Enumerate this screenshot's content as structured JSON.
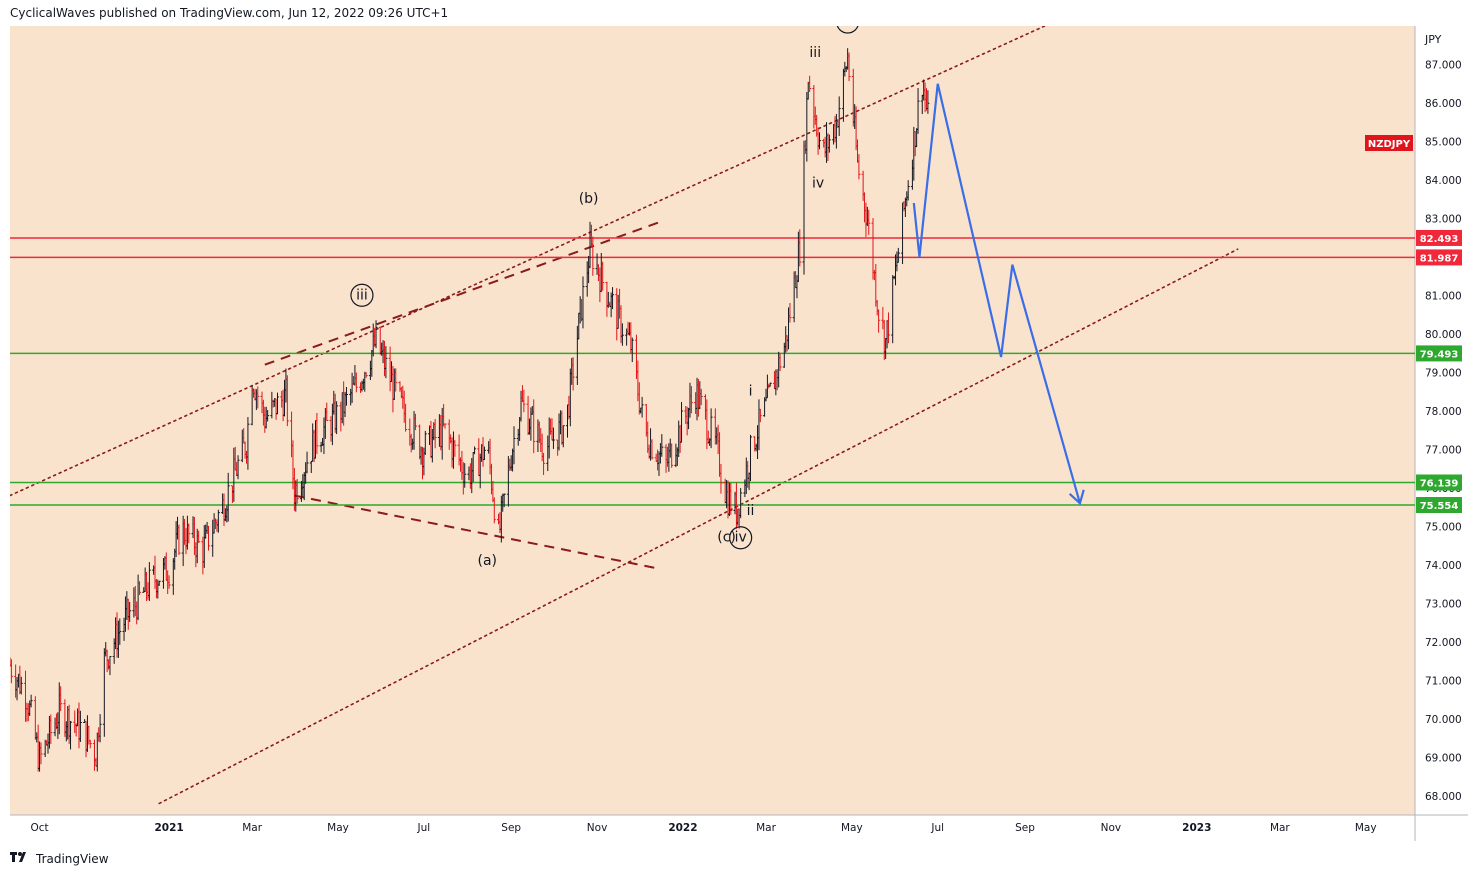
{
  "header": {
    "publisher_line": "CyclicalWaves published on TradingView.com, Jun 12, 2022 09:26 UTC+1"
  },
  "footer": {
    "brand": "TradingView",
    "logo_icon": "tradingview-logo-icon"
  },
  "colors": {
    "background": "#fae3cc",
    "up_candle": "#131722",
    "down_candle": "#e0151b",
    "resistance": "#f0283a",
    "support": "#2ea82e",
    "channel": "#8b1a1a",
    "projection": "#3a6ee8",
    "symbol_badge": "#e0151b"
  },
  "chart_data": {
    "type": "candlestick",
    "symbol": "NZDJPY",
    "currency": "JPY",
    "y_axis": {
      "range": [
        67.5,
        88.0
      ],
      "ticks": [
        "68.000",
        "69.000",
        "70.000",
        "71.000",
        "72.000",
        "73.000",
        "74.000",
        "75.000",
        "76.000",
        "77.000",
        "78.000",
        "79.000",
        "80.000",
        "81.000",
        "82.000",
        "83.000",
        "84.000",
        "85.000",
        "86.000",
        "87.000"
      ]
    },
    "x_axis": {
      "labels": [
        {
          "text": "Oct",
          "date": "2020-10-01"
        },
        {
          "text": "2021",
          "date": "2021-01-01"
        },
        {
          "text": "Mar",
          "date": "2021-03-01"
        },
        {
          "text": "May",
          "date": "2021-05-01"
        },
        {
          "text": "Jul",
          "date": "2021-07-01"
        },
        {
          "text": "Sep",
          "date": "2021-09-01"
        },
        {
          "text": "Nov",
          "date": "2021-11-01"
        },
        {
          "text": "2022",
          "date": "2022-01-01"
        },
        {
          "text": "Mar",
          "date": "2022-03-01"
        },
        {
          "text": "May",
          "date": "2022-05-01"
        },
        {
          "text": "Jul",
          "date": "2022-07-01"
        },
        {
          "text": "Sep",
          "date": "2022-09-01"
        },
        {
          "text": "Nov",
          "date": "2022-11-01"
        },
        {
          "text": "2023",
          "date": "2023-01-01"
        },
        {
          "text": "Mar",
          "date": "2023-03-01"
        },
        {
          "text": "May",
          "date": "2023-05-01"
        }
      ],
      "range": [
        "2020-09-10",
        "2023-06-05"
      ]
    },
    "price_path": [
      {
        "date": "2020-09-10",
        "price": 71.4
      },
      {
        "date": "2020-09-22",
        "price": 70.6
      },
      {
        "date": "2020-10-01",
        "price": 68.9
      },
      {
        "date": "2020-10-15",
        "price": 70.2
      },
      {
        "date": "2020-11-01",
        "price": 69.7
      },
      {
        "date": "2020-11-10",
        "price": 69.1
      },
      {
        "date": "2020-11-16",
        "price": 71.5
      },
      {
        "date": "2020-12-01",
        "price": 72.6
      },
      {
        "date": "2020-12-20",
        "price": 73.6
      },
      {
        "date": "2021-01-01",
        "price": 73.9
      },
      {
        "date": "2021-01-10",
        "price": 74.9
      },
      {
        "date": "2021-01-25",
        "price": 74.4
      },
      {
        "date": "2021-02-10",
        "price": 75.7
      },
      {
        "date": "2021-02-25",
        "price": 77.2
      },
      {
        "date": "2021-03-01",
        "price": 78.9
      },
      {
        "date": "2021-03-10",
        "price": 77.8
      },
      {
        "date": "2021-03-25",
        "price": 78.4
      },
      {
        "date": "2021-03-31",
        "price": 75.9
      },
      {
        "date": "2021-04-15",
        "price": 77.3
      },
      {
        "date": "2021-05-01",
        "price": 77.9
      },
      {
        "date": "2021-05-15",
        "price": 78.7
      },
      {
        "date": "2021-05-28",
        "price": 79.8
      },
      {
        "date": "2021-06-15",
        "price": 78.1
      },
      {
        "date": "2021-06-30",
        "price": 77.0
      },
      {
        "date": "2021-07-15",
        "price": 77.5
      },
      {
        "date": "2021-08-01",
        "price": 76.3
      },
      {
        "date": "2021-08-15",
        "price": 77.1
      },
      {
        "date": "2021-08-23",
        "price": 74.7
      },
      {
        "date": "2021-09-01",
        "price": 76.9
      },
      {
        "date": "2021-09-08",
        "price": 78.2
      },
      {
        "date": "2021-09-25",
        "price": 77.0
      },
      {
        "date": "2021-10-10",
        "price": 77.7
      },
      {
        "date": "2021-10-20",
        "price": 80.5
      },
      {
        "date": "2021-10-27",
        "price": 82.2
      },
      {
        "date": "2021-11-10",
        "price": 80.9
      },
      {
        "date": "2021-11-25",
        "price": 79.7
      },
      {
        "date": "2021-12-05",
        "price": 77.4
      },
      {
        "date": "2021-12-20",
        "price": 76.6
      },
      {
        "date": "2022-01-01",
        "price": 77.7
      },
      {
        "date": "2022-01-10",
        "price": 78.5
      },
      {
        "date": "2022-01-25",
        "price": 77.0
      },
      {
        "date": "2022-02-01",
        "price": 75.8
      },
      {
        "date": "2022-02-08",
        "price": 75.4
      },
      {
        "date": "2022-02-20",
        "price": 77.2
      },
      {
        "date": "2022-03-01",
        "price": 78.1
      },
      {
        "date": "2022-03-15",
        "price": 79.8
      },
      {
        "date": "2022-03-25",
        "price": 82.3
      },
      {
        "date": "2022-03-31",
        "price": 86.7
      },
      {
        "date": "2022-04-10",
        "price": 84.6
      },
      {
        "date": "2022-04-20",
        "price": 85.5
      },
      {
        "date": "2022-04-28",
        "price": 87.2
      },
      {
        "date": "2022-05-05",
        "price": 84.4
      },
      {
        "date": "2022-05-12",
        "price": 83.0
      },
      {
        "date": "2022-05-20",
        "price": 80.6
      },
      {
        "date": "2022-05-25",
        "price": 79.8
      },
      {
        "date": "2022-06-01",
        "price": 81.6
      },
      {
        "date": "2022-06-08",
        "price": 83.5
      },
      {
        "date": "2022-06-14",
        "price": 85.0
      },
      {
        "date": "2022-06-20",
        "price": 86.6
      },
      {
        "date": "2022-06-24",
        "price": 85.6
      }
    ],
    "horizontal_levels": [
      {
        "value": 82.493,
        "label": "82.493",
        "kind": "resistance"
      },
      {
        "value": 81.987,
        "label": "81.987",
        "kind": "resistance"
      },
      {
        "value": 79.493,
        "label": "79.493",
        "kind": "support"
      },
      {
        "value": 76.139,
        "label": "76.139",
        "kind": "support"
      },
      {
        "value": 75.554,
        "label": "75.554",
        "kind": "support"
      }
    ],
    "channel_lines": [
      {
        "style": "dotted",
        "points": [
          {
            "date": "2020-09-10",
            "price": 75.8
          },
          {
            "date": "2022-09-15",
            "price": 88.0
          }
        ]
      },
      {
        "style": "dotted",
        "points": [
          {
            "date": "2020-12-25",
            "price": 67.8
          },
          {
            "date": "2023-01-30",
            "price": 82.2
          }
        ]
      }
    ],
    "triangle_lines": [
      {
        "style": "dashed",
        "points": [
          {
            "date": "2021-03-10",
            "price": 79.2
          },
          {
            "date": "2021-12-15",
            "price": 82.9
          }
        ]
      },
      {
        "style": "dashed",
        "points": [
          {
            "date": "2021-03-31",
            "price": 75.8
          },
          {
            "date": "2021-12-15",
            "price": 73.9
          }
        ]
      }
    ],
    "projection_path": [
      {
        "date": "2022-06-14",
        "price": 83.4
      },
      {
        "date": "2022-06-18",
        "price": 82.0
      },
      {
        "date": "2022-07-01",
        "price": 86.5
      },
      {
        "date": "2022-08-15",
        "price": 79.4
      },
      {
        "date": "2022-08-23",
        "price": 81.8
      },
      {
        "date": "2022-10-10",
        "price": 75.6
      }
    ],
    "wave_labels": [
      {
        "text": "iii",
        "date": "2021-05-18",
        "price": 80.9,
        "circled": true
      },
      {
        "text": "(b)",
        "date": "2021-10-26",
        "price": 83.4,
        "circled": false
      },
      {
        "text": "(a)",
        "date": "2021-08-15",
        "price": 74.0,
        "circled": false
      },
      {
        "text": "(c)",
        "date": "2022-02-01",
        "price": 74.6,
        "circled": false
      },
      {
        "text": "iv",
        "date": "2022-02-11",
        "price": 74.6,
        "circled": true
      },
      {
        "text": "i",
        "date": "2022-02-18",
        "price": 78.4,
        "circled": false
      },
      {
        "text": "ii",
        "date": "2022-02-18",
        "price": 75.3,
        "circled": false
      },
      {
        "text": "iii",
        "date": "2022-04-05",
        "price": 87.2,
        "circled": false
      },
      {
        "text": "iv",
        "date": "2022-04-07",
        "price": 83.8,
        "circled": false
      },
      {
        "text": "v",
        "date": "2022-04-28",
        "price": 88.0,
        "circled": true
      },
      {
        "text": "v",
        "date": "2022-04-27",
        "price": 88.0,
        "circled": false
      }
    ]
  }
}
